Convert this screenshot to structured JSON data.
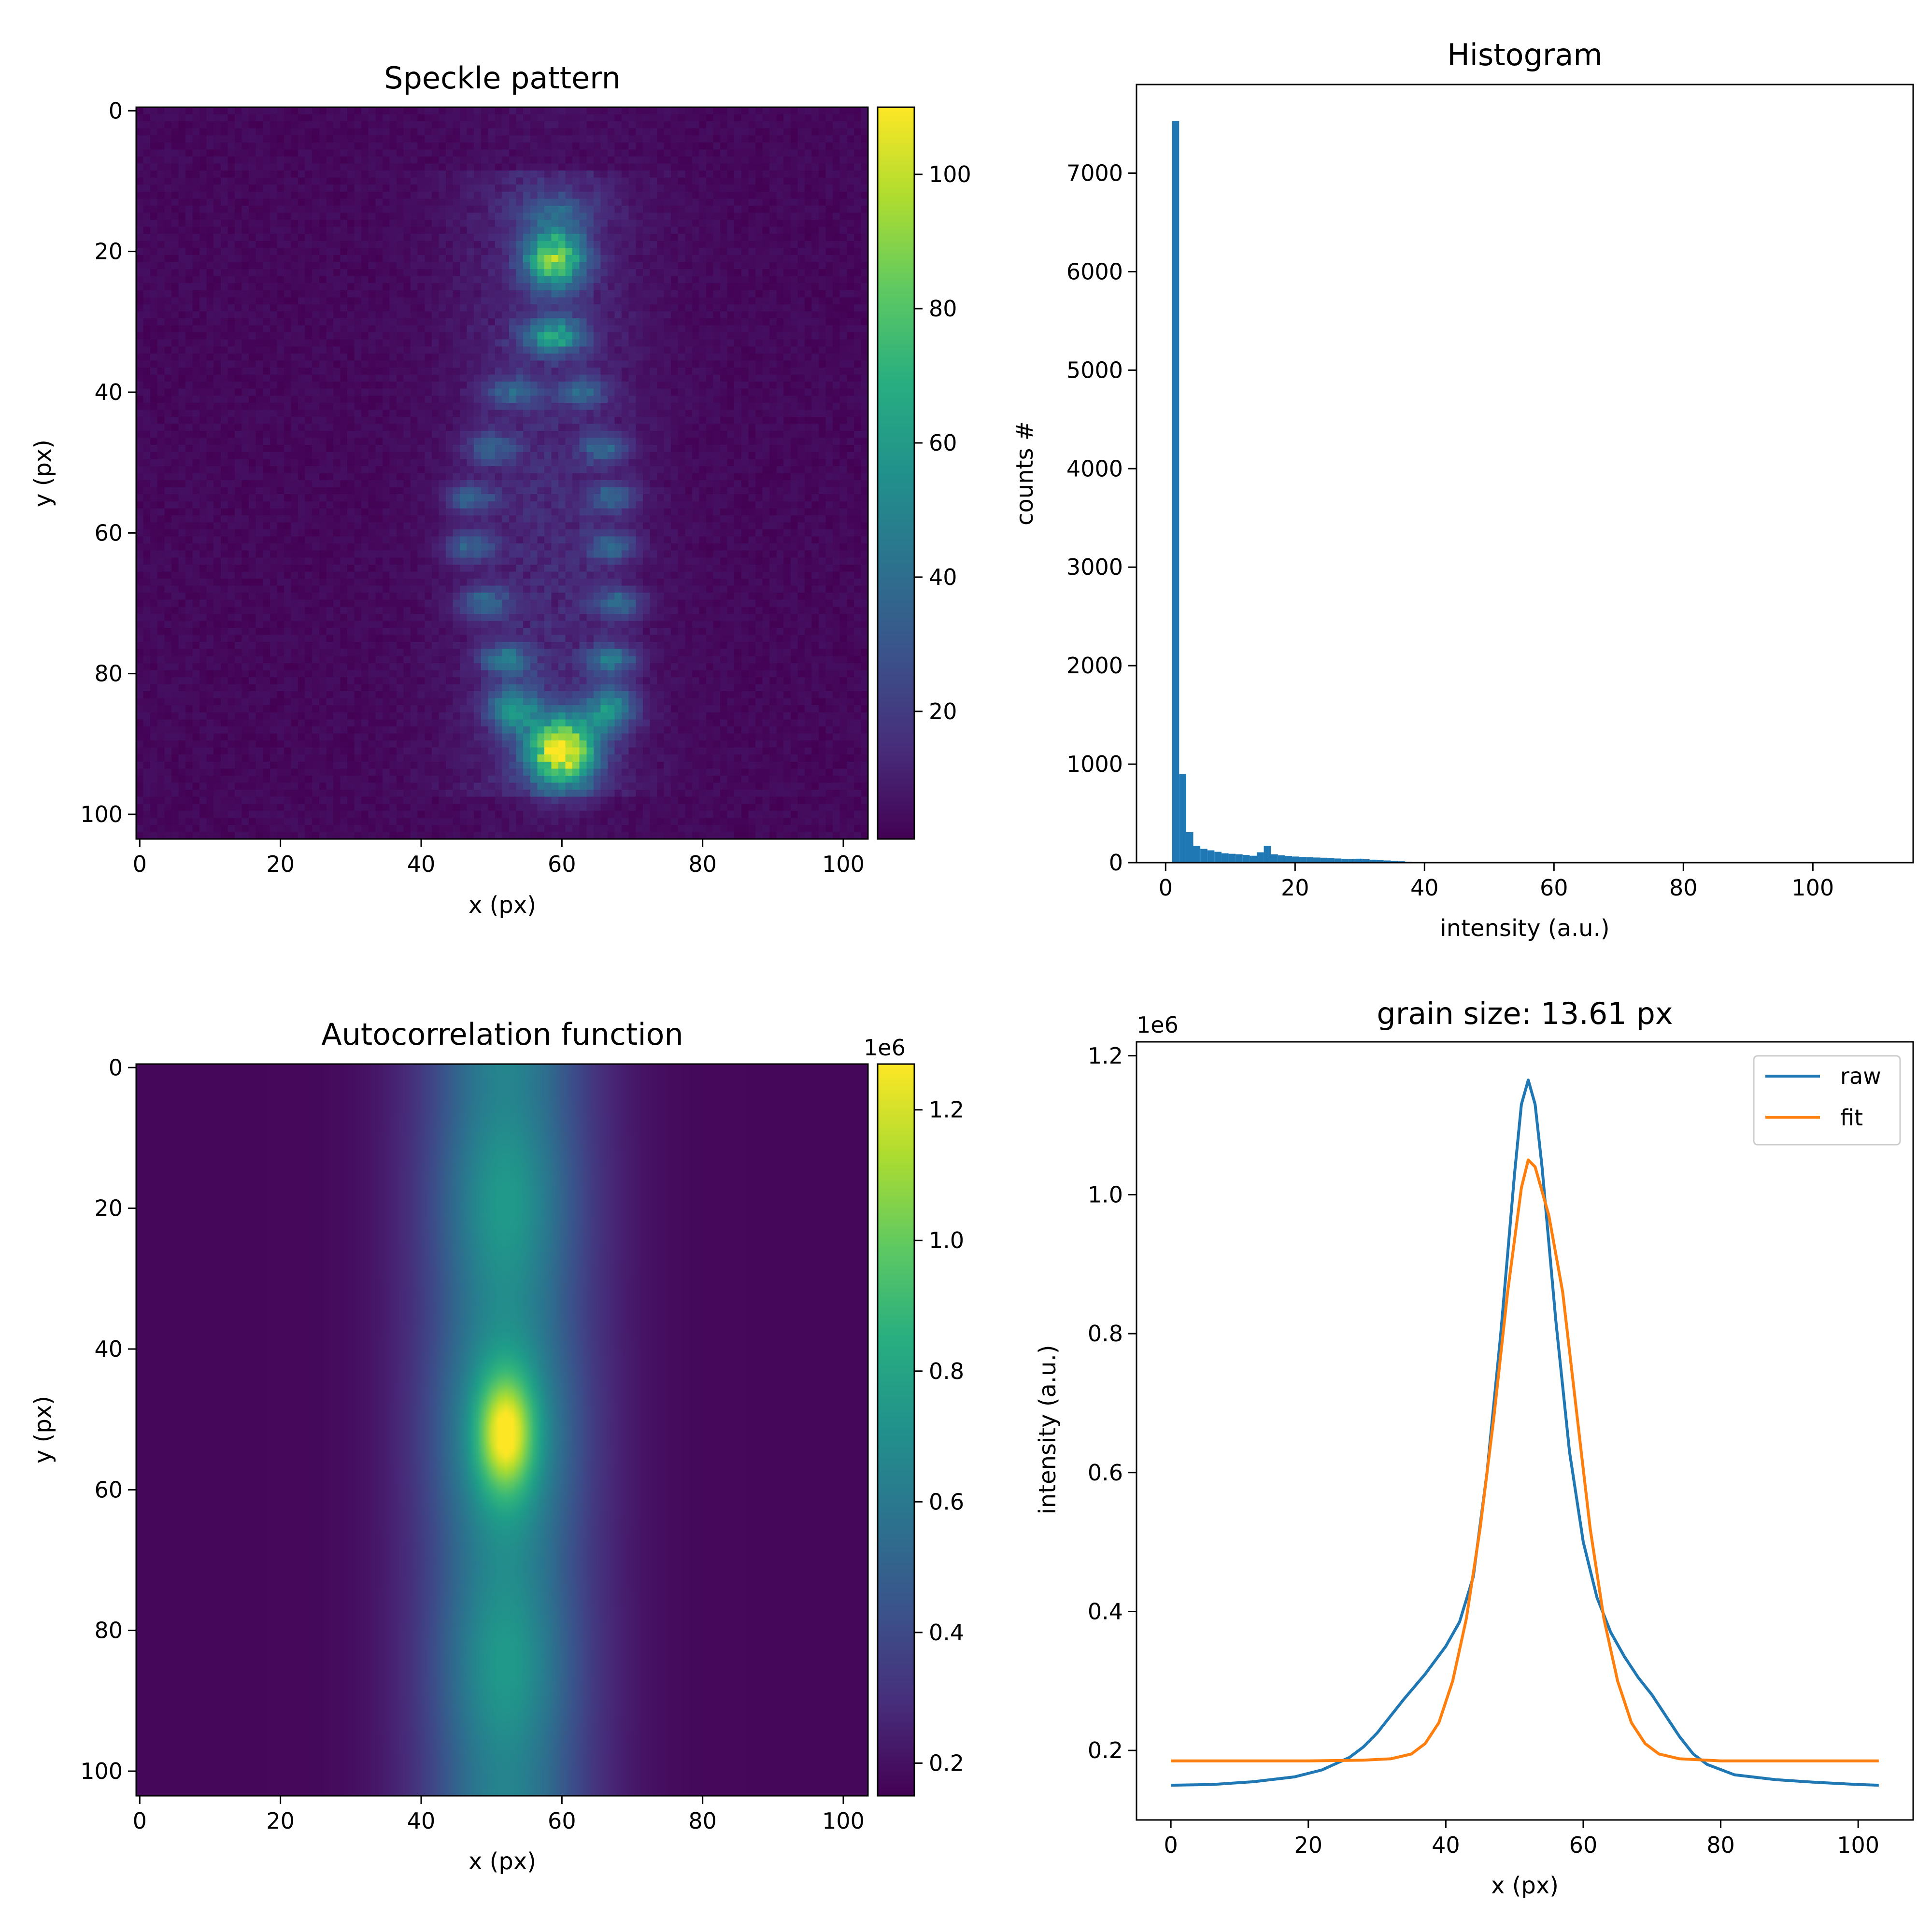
{
  "chart_data": [
    {
      "type": "heatmap",
      "title": "Speckle pattern",
      "xlabel": "x (px)",
      "ylabel": "y (px)",
      "xlim": [
        -0.5,
        103.5
      ],
      "ylim": [
        103.5,
        -0.5
      ],
      "xticks": [
        0,
        20,
        40,
        60,
        80,
        100
      ],
      "yticks": [
        0,
        20,
        40,
        60,
        80,
        100
      ],
      "colormap": "viridis",
      "colorbar": {
        "min": 1,
        "max": 110,
        "ticks": [
          20,
          40,
          60,
          80,
          100
        ],
        "offset_label": ""
      },
      "blobs": [
        {
          "x": 60,
          "y": 91,
          "sx": 3.5,
          "sy": 3.5,
          "v": 100
        },
        {
          "x": 59,
          "y": 21,
          "sx": 3.0,
          "sy": 3.0,
          "v": 78
        },
        {
          "x": 59,
          "y": 32,
          "sx": 3.0,
          "sy": 1.8,
          "v": 52
        },
        {
          "x": 53,
          "y": 85,
          "sx": 2.5,
          "sy": 2.2,
          "v": 48
        },
        {
          "x": 67,
          "y": 85,
          "sx": 2.5,
          "sy": 2.2,
          "v": 46
        },
        {
          "x": 52,
          "y": 78,
          "sx": 2.5,
          "sy": 1.5,
          "v": 40
        },
        {
          "x": 67,
          "y": 78,
          "sx": 2.5,
          "sy": 1.5,
          "v": 38
        },
        {
          "x": 49,
          "y": 70,
          "sx": 2.5,
          "sy": 1.5,
          "v": 32
        },
        {
          "x": 68,
          "y": 70,
          "sx": 2.5,
          "sy": 1.5,
          "v": 32
        },
        {
          "x": 47,
          "y": 62,
          "sx": 2.5,
          "sy": 1.5,
          "v": 30
        },
        {
          "x": 67,
          "y": 62,
          "sx": 2.5,
          "sy": 1.5,
          "v": 30
        },
        {
          "x": 47,
          "y": 55,
          "sx": 2.5,
          "sy": 1.5,
          "v": 28
        },
        {
          "x": 67,
          "y": 55,
          "sx": 2.5,
          "sy": 1.5,
          "v": 28
        },
        {
          "x": 50,
          "y": 48,
          "sx": 2.5,
          "sy": 1.5,
          "v": 28
        },
        {
          "x": 66,
          "y": 48,
          "sx": 2.5,
          "sy": 1.5,
          "v": 28
        },
        {
          "x": 53,
          "y": 40,
          "sx": 2.5,
          "sy": 1.5,
          "v": 27
        },
        {
          "x": 63,
          "y": 40,
          "sx": 2.5,
          "sy": 1.5,
          "v": 27
        },
        {
          "x": 59,
          "y": 14,
          "sx": 4.0,
          "sy": 2.0,
          "v": 18
        }
      ]
    },
    {
      "type": "bar",
      "title": "Histogram",
      "xlabel": "intensity (a.u.)",
      "ylabel": "counts #",
      "xlim": [
        -4.5,
        115.5
      ],
      "ylim": [
        0,
        7900
      ],
      "xticks": [
        0,
        20,
        40,
        60,
        80,
        100
      ],
      "yticks": [
        0,
        1000,
        2000,
        3000,
        4000,
        5000,
        6000,
        7000
      ],
      "bin_width": 1.09,
      "bin_start": 1.0,
      "counts": [
        7530,
        900,
        310,
        170,
        140,
        125,
        110,
        95,
        90,
        85,
        78,
        70,
        105,
        170,
        85,
        75,
        68,
        62,
        58,
        55,
        52,
        50,
        48,
        42,
        38,
        36,
        40,
        35,
        30,
        26,
        22,
        18,
        14,
        10,
        8,
        6,
        4,
        3,
        2,
        1,
        1,
        1
      ]
    },
    {
      "type": "heatmap",
      "title": "Autocorrelation function",
      "xlabel": "x (px)",
      "ylabel": "y (px)",
      "xlim": [
        -0.5,
        103.5
      ],
      "ylim": [
        103.5,
        -0.5
      ],
      "xticks": [
        0,
        20,
        40,
        60,
        80,
        100
      ],
      "yticks": [
        0,
        20,
        40,
        60,
        80,
        100
      ],
      "colormap": "viridis",
      "colorbar": {
        "min": 0.15,
        "max": 1.27,
        "ticks": [
          0.2,
          0.4,
          0.6,
          0.8,
          1.0,
          1.2
        ],
        "offset_label": "1e6"
      },
      "center": {
        "x": 52,
        "y": 52
      }
    },
    {
      "type": "line",
      "title": "grain size: 13.61 px",
      "xlabel": "x (px)",
      "ylabel": "intensity (a.u.)",
      "xlim": [
        -5,
        108
      ],
      "ylim": [
        0.1,
        1.22
      ],
      "xticks": [
        0,
        20,
        40,
        60,
        80,
        100
      ],
      "yticks": [
        0.2,
        0.4,
        0.6,
        0.8,
        1.0,
        1.2
      ],
      "offset_label": "1e6",
      "legend": "upper-right",
      "series": [
        {
          "name": "raw",
          "color": "#1f77b4",
          "x": [
            0,
            6,
            12,
            18,
            22,
            26,
            28,
            30,
            32,
            34,
            37,
            40,
            42,
            44,
            46,
            48,
            50,
            51,
            52,
            53,
            54,
            56,
            58,
            60,
            62,
            64,
            66,
            68,
            70,
            72,
            74,
            76,
            78,
            82,
            88,
            94,
            100,
            103
          ],
          "y": [
            0.15,
            0.151,
            0.155,
            0.162,
            0.172,
            0.19,
            0.205,
            0.225,
            0.25,
            0.275,
            0.31,
            0.35,
            0.385,
            0.45,
            0.6,
            0.8,
            1.03,
            1.13,
            1.165,
            1.13,
            1.04,
            0.82,
            0.63,
            0.5,
            0.42,
            0.37,
            0.335,
            0.305,
            0.28,
            0.25,
            0.22,
            0.195,
            0.18,
            0.165,
            0.158,
            0.154,
            0.151,
            0.15
          ]
        },
        {
          "name": "fit",
          "color": "#ff7f0e",
          "x": [
            0,
            20,
            28,
            32,
            35,
            37,
            39,
            41,
            43,
            45,
            47,
            49,
            51,
            52,
            53,
            55,
            57,
            59,
            61,
            63,
            65,
            67,
            69,
            71,
            74,
            80,
            103
          ],
          "y": [
            0.185,
            0.185,
            0.186,
            0.188,
            0.195,
            0.21,
            0.24,
            0.3,
            0.39,
            0.52,
            0.68,
            0.86,
            1.01,
            1.05,
            1.04,
            0.97,
            0.86,
            0.69,
            0.52,
            0.39,
            0.3,
            0.24,
            0.21,
            0.195,
            0.188,
            0.185,
            0.185
          ]
        }
      ]
    }
  ]
}
